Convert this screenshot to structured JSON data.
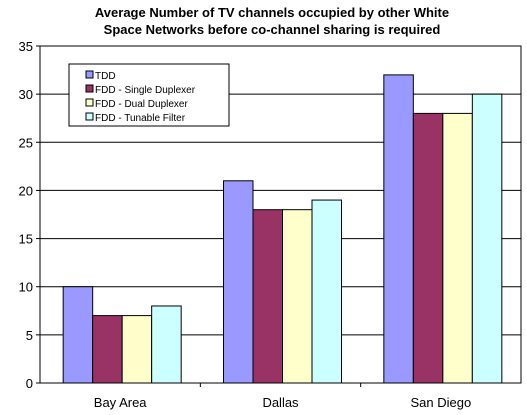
{
  "chart_data": {
    "type": "bar",
    "title_lines": [
      "Average Number of TV channels occupied by other White",
      "Space Networks before co-channel sharing is required"
    ],
    "xlabel": "",
    "ylabel": "",
    "ylim": [
      0,
      35
    ],
    "yticks": [
      0,
      5,
      10,
      15,
      20,
      25,
      30,
      35
    ],
    "grid": true,
    "legend_position": "top-left",
    "categories": [
      "Bay Area",
      "Dallas",
      "San Diego"
    ],
    "series": [
      {
        "name": "TDD",
        "color": "#9999ff",
        "values": [
          10,
          21,
          32
        ]
      },
      {
        "name": "FDD - Single Duplexer",
        "color": "#993366",
        "values": [
          7,
          18,
          28
        ]
      },
      {
        "name": "FDD - Dual Duplexer",
        "color": "#ffffcc",
        "values": [
          7,
          18,
          28
        ]
      },
      {
        "name": "FDD - Tunable Filter",
        "color": "#ccffff",
        "values": [
          8,
          19,
          30
        ]
      }
    ]
  }
}
